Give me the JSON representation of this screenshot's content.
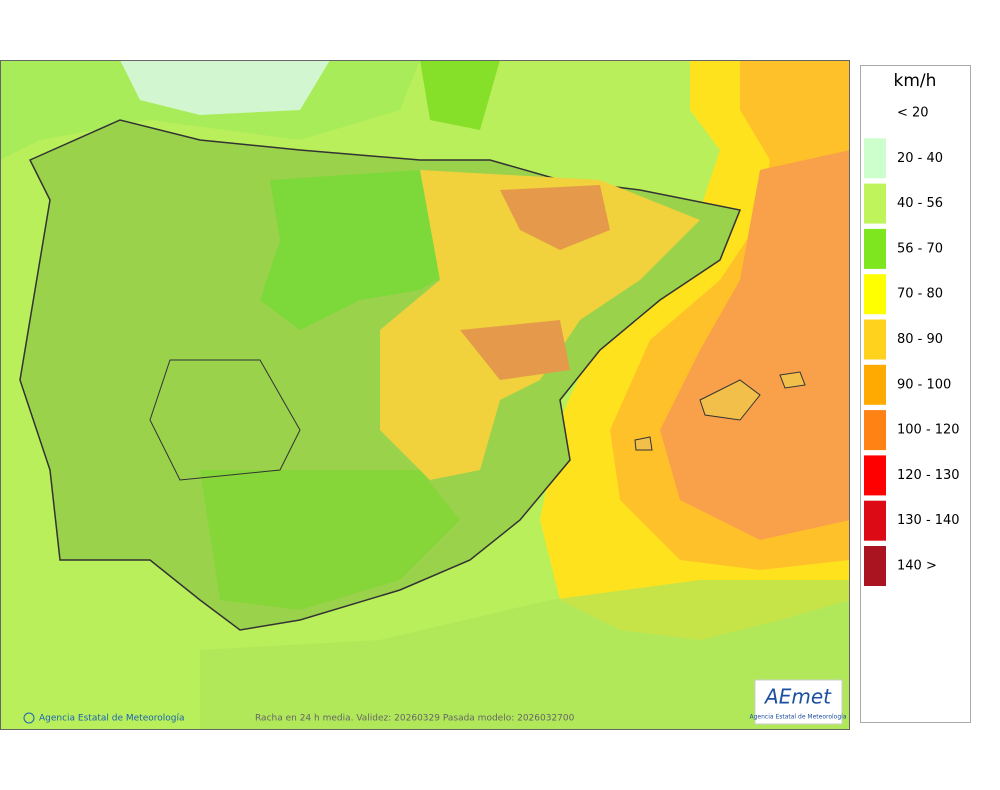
{
  "legend": {
    "title": "km/h",
    "items": [
      {
        "label": "< 20"
      },
      {
        "label": "20 - 40",
        "color": "#ccffcc"
      },
      {
        "label": "40 - 56",
        "color": "#bff55a"
      },
      {
        "label": "56 - 70",
        "color": "#7de61e"
      },
      {
        "label": "70 - 80",
        "color": "#ffff00"
      },
      {
        "label": "80 - 90",
        "color": "#ffd21e"
      },
      {
        "label": "90 - 100",
        "color": "#ffaa00"
      },
      {
        "label": "100 - 120",
        "color": "#ff8214"
      },
      {
        "label": "120 - 130",
        "color": "#ff0000"
      },
      {
        "label": "130 - 140",
        "color": "#dc0a14"
      },
      {
        "label": "140 >",
        "color": "#aa1420"
      }
    ]
  },
  "footer": {
    "credit": "Agencia Estatal de Meteorología",
    "caption": "Racha en 24 h media. Validez: 20260329 Pasada modelo: 2026032700"
  },
  "logo": {
    "name": "AEmet",
    "subtitle": "Agencia Estatal de Meteorología"
  }
}
